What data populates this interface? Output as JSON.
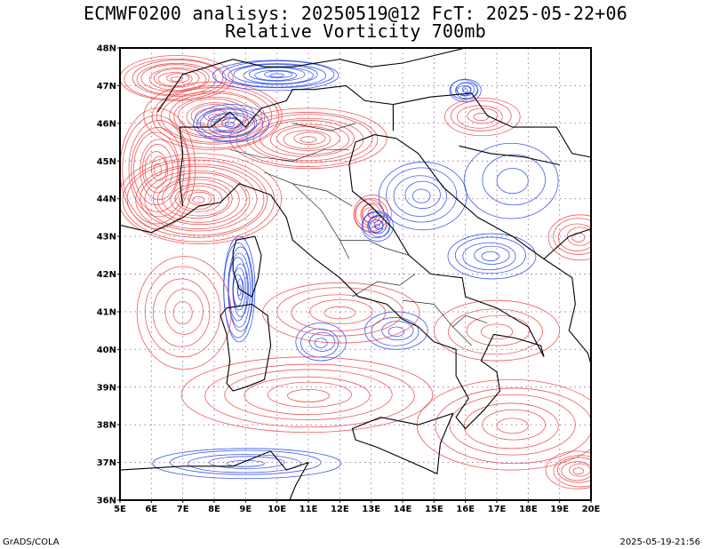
{
  "title_line1": "ECMWF0200 analisys: 20250519@12 FcT: 2025-05-22+06",
  "title_line2": "Relative Vorticity 700mb",
  "footer_left": "GrADS/COLA",
  "footer_right": "2025-05-19-21:56",
  "map": {
    "lon_range": [
      5,
      20
    ],
    "lat_range": [
      36,
      48
    ],
    "lon_ticks": [
      "5E",
      "6E",
      "7E",
      "8E",
      "9E",
      "10E",
      "11E",
      "12E",
      "13E",
      "14E",
      "15E",
      "16E",
      "17E",
      "18E",
      "19E",
      "20E"
    ],
    "lat_ticks": [
      "36N",
      "37N",
      "38N",
      "39N",
      "40N",
      "41N",
      "42N",
      "43N",
      "44N",
      "45N",
      "46N",
      "47N",
      "48N"
    ],
    "grid": "dotted",
    "colors": {
      "positive": "#f04848",
      "negative": "#2848f0",
      "borders": "#000000",
      "grid": "#a070a0"
    }
  }
}
